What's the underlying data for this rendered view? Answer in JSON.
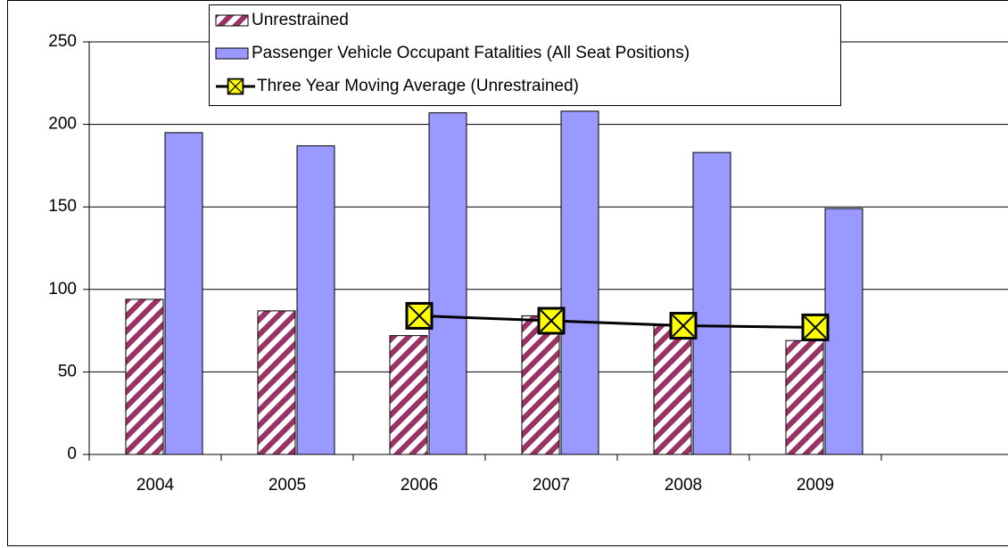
{
  "chart_data": {
    "type": "bar",
    "categories": [
      "2004",
      "2005",
      "2006",
      "2007",
      "2008",
      "2009",
      null
    ],
    "series": [
      {
        "name": "Unrestrained",
        "type": "bar",
        "color": "#993366",
        "hatch": true,
        "values": [
          94,
          87,
          72,
          84,
          78,
          69,
          null
        ]
      },
      {
        "name": "Passenger Vehicle Occupant Fatalities (All Seat Positions)",
        "type": "bar",
        "color": "#9999ff",
        "values": [
          195,
          187,
          207,
          208,
          183,
          149,
          null
        ]
      },
      {
        "name": "Three Year  Moving Average (Unrestrained)",
        "type": "line",
        "color": "#000000",
        "marker_color": "#ffff00",
        "values": [
          null,
          null,
          84,
          81,
          78,
          77,
          null
        ]
      }
    ],
    "ylim": [
      0,
      250
    ],
    "yticks": [
      0,
      50,
      100,
      150,
      200,
      250
    ],
    "grid": true,
    "legend": "top"
  }
}
